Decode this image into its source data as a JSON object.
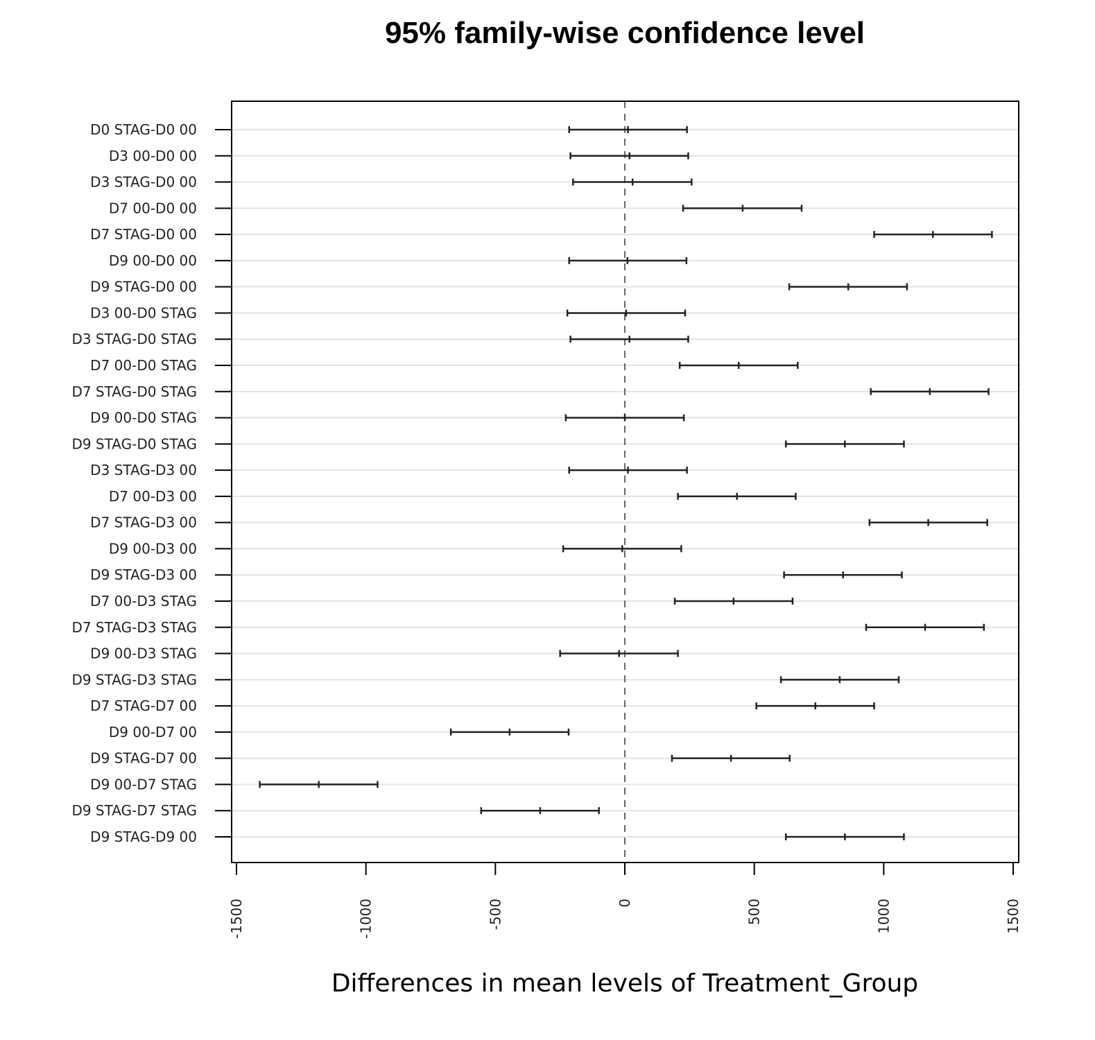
{
  "chart_data": {
    "type": "interval",
    "title": "95% family-wise confidence level",
    "xlabel": "Differences in mean levels of Treatment_Group",
    "ylabel": "",
    "xlim": [
      -1500,
      1500
    ],
    "x_ticks": [
      "-1500",
      "-1000",
      "-500",
      "0",
      "500",
      "1000",
      "1500"
    ],
    "reference_line": {
      "x": 0,
      "style": "dashed"
    },
    "grid": "horizontal",
    "comparisons": [
      {
        "label": "D0 STAG-D0 00",
        "lwr": -215,
        "diff": 12,
        "upr": 240
      },
      {
        "label": "D3 00-D0 00",
        "lwr": -210,
        "diff": 18,
        "upr": 245
      },
      {
        "label": "D3 STAG-D0 00",
        "lwr": -200,
        "diff": 30,
        "upr": 258
      },
      {
        "label": "D7 00-D0 00",
        "lwr": 225,
        "diff": 455,
        "upr": 683
      },
      {
        "label": "D7 STAG-D0 00",
        "lwr": 963,
        "diff": 1190,
        "upr": 1418
      },
      {
        "label": "D9 00-D0 00",
        "lwr": -215,
        "diff": 10,
        "upr": 238
      },
      {
        "label": "D9 STAG-D0 00",
        "lwr": 635,
        "diff": 863,
        "upr": 1090
      },
      {
        "label": "D3 00-D0 STAG",
        "lwr": -222,
        "diff": 5,
        "upr": 233
      },
      {
        "label": "D3 STAG-D0 STAG",
        "lwr": -210,
        "diff": 18,
        "upr": 245
      },
      {
        "label": "D7 00-D0 STAG",
        "lwr": 212,
        "diff": 440,
        "upr": 668
      },
      {
        "label": "D7 STAG-D0 STAG",
        "lwr": 950,
        "diff": 1178,
        "upr": 1405
      },
      {
        "label": "D9 00-D0 STAG",
        "lwr": -228,
        "diff": 0,
        "upr": 228
      },
      {
        "label": "D9 STAG-D0 STAG",
        "lwr": 622,
        "diff": 850,
        "upr": 1078
      },
      {
        "label": "D3 STAG-D3 00",
        "lwr": -215,
        "diff": 12,
        "upr": 240
      },
      {
        "label": "D7 00-D3 00",
        "lwr": 205,
        "diff": 433,
        "upr": 660
      },
      {
        "label": "D7 STAG-D3 00",
        "lwr": 945,
        "diff": 1172,
        "upr": 1400
      },
      {
        "label": "D9 00-D3 00",
        "lwr": -238,
        "diff": -10,
        "upr": 218
      },
      {
        "label": "D9 STAG-D3 00",
        "lwr": 615,
        "diff": 843,
        "upr": 1070
      },
      {
        "label": "D7 00-D3 STAG",
        "lwr": 193,
        "diff": 420,
        "upr": 648
      },
      {
        "label": "D7 STAG-D3 STAG",
        "lwr": 932,
        "diff": 1160,
        "upr": 1387
      },
      {
        "label": "D9 00-D3 STAG",
        "lwr": -250,
        "diff": -22,
        "upr": 205
      },
      {
        "label": "D9 STAG-D3 STAG",
        "lwr": 603,
        "diff": 830,
        "upr": 1058
      },
      {
        "label": "D7 STAG-D7 00",
        "lwr": 508,
        "diff": 736,
        "upr": 963
      },
      {
        "label": "D9 00-D7 00",
        "lwr": -672,
        "diff": -445,
        "upr": -217
      },
      {
        "label": "D9 STAG-D7 00",
        "lwr": 182,
        "diff": 410,
        "upr": 637
      },
      {
        "label": "D9 00-D7 STAG",
        "lwr": -1410,
        "diff": -1182,
        "upr": -955
      },
      {
        "label": "D9 STAG-D7 STAG",
        "lwr": -555,
        "diff": -327,
        "upr": -100
      },
      {
        "label": "D9 STAG-D9 00",
        "lwr": 622,
        "diff": 850,
        "upr": 1078
      }
    ]
  }
}
